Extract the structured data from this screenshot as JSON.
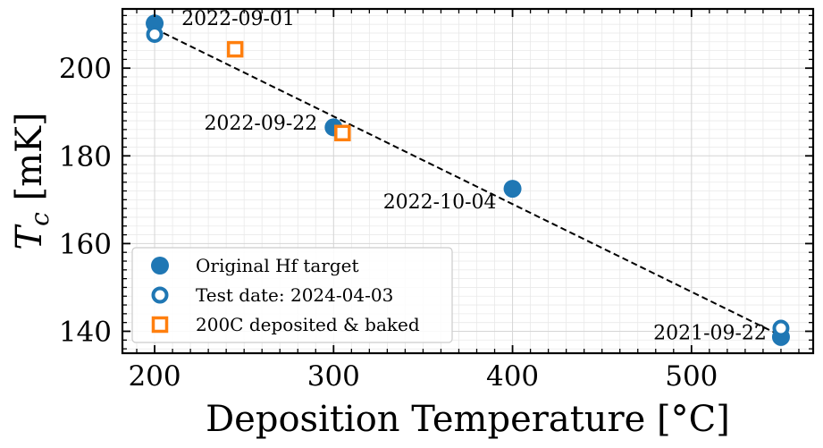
{
  "chart_data": {
    "type": "scatter",
    "xlabel": "Deposition Temperature [°C]",
    "ylabel": {
      "main": "T",
      "sub": "c",
      "unit": " [mK]"
    },
    "xlim": [
      182,
      568
    ],
    "ylim": [
      135,
      213.5
    ],
    "xticks": [
      200,
      300,
      400,
      500
    ],
    "yticks": [
      140,
      160,
      180,
      200
    ],
    "grid": true,
    "legend": "lower-left",
    "series": [
      {
        "name": "Original Hf target",
        "marker": "filled-circle",
        "color": "#1f77b4",
        "points": [
          {
            "x": 200,
            "y": 210.2
          },
          {
            "x": 300,
            "y": 186.5
          },
          {
            "x": 400,
            "y": 172.5
          },
          {
            "x": 550,
            "y": 138.7
          }
        ]
      },
      {
        "name": "Test date: 2024-04-03",
        "marker": "open-circle",
        "color": "#1f77b4",
        "points": [
          {
            "x": 200,
            "y": 207.7
          },
          {
            "x": 550,
            "y": 140.7
          }
        ]
      },
      {
        "name": "200C deposited & baked",
        "marker": "open-square",
        "color": "#ff7f0e",
        "points": [
          {
            "x": 245,
            "y": 204.3
          },
          {
            "x": 305,
            "y": 185.2
          }
        ]
      }
    ],
    "fit_line": {
      "style": "dashed",
      "color": "#000000",
      "points": [
        {
          "x": 200,
          "y": 209.0
        },
        {
          "x": 550,
          "y": 139.0
        }
      ]
    },
    "annotations": [
      {
        "text": "2022-09-01",
        "x": 215,
        "y": 209.8,
        "anchor": "start"
      },
      {
        "text": "2022-09-22",
        "x": 291,
        "y": 186.0,
        "anchor": "end"
      },
      {
        "text": "2022-10-04",
        "x": 391,
        "y": 168.0,
        "anchor": "end"
      },
      {
        "text": "2021-09-22",
        "x": 542,
        "y": 138.2,
        "anchor": "end"
      }
    ]
  }
}
